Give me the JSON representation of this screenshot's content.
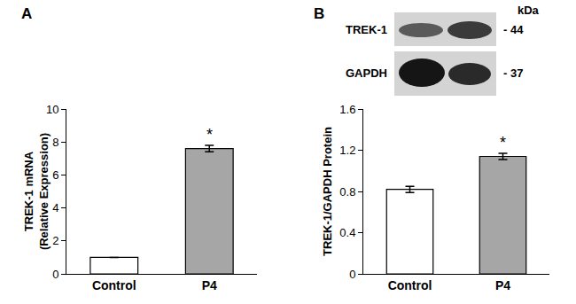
{
  "chart_data": [
    {
      "type": "bar",
      "panel": "A",
      "categories": [
        "Control",
        "P4"
      ],
      "values": [
        1.0,
        7.6
      ],
      "errors": [
        0.0,
        0.2
      ],
      "colors": [
        "#ffffff",
        "#a6a6a6"
      ],
      "ylabel": [
        "TREK-1 mRNA",
        "(Relative Expression)"
      ],
      "ylim": [
        0,
        10
      ],
      "yticks": [
        0,
        2,
        4,
        6,
        8,
        10
      ],
      "grid": false,
      "annotations": [
        {
          "text": "*",
          "category": "P4"
        }
      ]
    },
    {
      "type": "bar",
      "panel": "B",
      "categories": [
        "Control",
        "P4"
      ],
      "values": [
        0.82,
        1.14
      ],
      "errors": [
        0.03,
        0.03
      ],
      "colors": [
        "#ffffff",
        "#a6a6a6"
      ],
      "ylabel": [
        "TREK-1/GAPDH Protein"
      ],
      "ylim": [
        0,
        1.6
      ],
      "yticks": [
        0,
        0.4,
        0.8,
        1.2,
        1.6
      ],
      "grid": false,
      "annotations": [
        {
          "text": "*",
          "category": "P4"
        }
      ]
    }
  ],
  "blot": {
    "unit": "kDa",
    "rows": [
      {
        "label": "TREK-1",
        "marker_label": "- 44"
      },
      {
        "label": "GAPDH",
        "marker_label": "- 37"
      }
    ]
  }
}
